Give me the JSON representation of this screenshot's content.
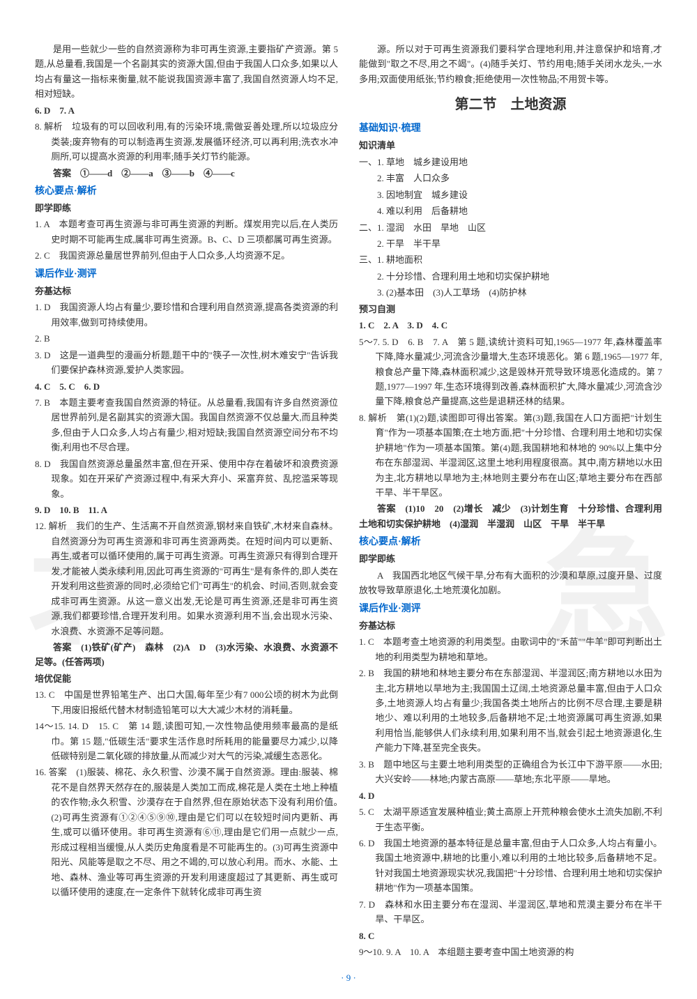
{
  "left_col": {
    "intro_para": "是用一些就少一些的自然资源称为非可再生资源,主要指矿产资源。第 5 题,从总量看,我国是一个名副其实的资源大国,但由于我国人口众多,如果以人均占有量这一指标来衡量,就不能说我国资源丰富了,我国自然资源人均不足,相对短缺。",
    "q6": "6. D　7. A",
    "q8_analysis": "8. 解析　垃圾有的可以回收利用,有的污染环境,需做妥善处理,所以垃圾应分类装;废弃物有的可以制造再生资源,发展循环经济,可以再利用;洗衣水冲厕所,可以提高水资源的利用率;随手关灯节约能源。",
    "q8_answer": "答案　①——d　②——a　③——b　④——c",
    "sec_hexin": "核心要点·解析",
    "sub_jixue": "即学即练",
    "hx_q1": "1. A　本题考查可再生资源与非可再生资源的判断。煤炭用完以后,在人类历史时期不可能再生成,属非可再生资源。B、C、D 三项都属可再生资源。",
    "hx_q2": "2. C　我国资源总量居世界前列,但由于人口众多,人均资源不足。",
    "sec_kehou": "课后作业·测评",
    "sub_daba": "夯基达标",
    "kh_q1": "1. D　我国资源人均占有量少,要珍惜和合理利用自然资源,提高各类资源的利用效率,做到可持续使用。",
    "kh_q2": "2. B",
    "kh_q3": "3. D　这是一道典型的漫画分析题,题干中的\"筷子一次性,树木难安宁\"告诉我们要保护森林资源,爱护人类家园。",
    "kh_q4": "4. C　5. C　6. D",
    "kh_q7": "7. B　本题主要考查我国自然资源的特征。从总量看,我国有许多自然资源位居世界前列,是名副其实的资源大国。我国自然资源不仅总量大,而且种类多,但由于人口众多,人均占有量少,相对短缺;我国自然资源空间分布不均衡,利用也不尽合理。",
    "kh_q8": "8. D　我国自然资源总量虽然丰富,但在开采、使用中存在着破坏和浪费资源现象。如在开采矿产资源过程中,有采大弃小、采富弃贫、乱挖滥采等现象。",
    "kh_q9": "9. D　10. B　11. A",
    "kh_q12_analysis": "12. 解析　我们的生产、生活离不开自然资源,钢材来自铁矿,木材来自森林。自然资源分为可再生资源和非可再生资源两类。在短时间内可以更新、再生,或者可以循环使用的,属于可再生资源。可再生资源只有得到合理开发,才能被人类永续利用,因此可再生资源的\"可再生\"是有条件的,即人类在开发利用这些资源的同时,必须给它们\"可再生\"的机会、时间,否则,就会变成非可再生资源。从这一意义出发,无论是可再生资源,还是非可再生资源,我们都要珍惜,合理开发利用。如果水资源利用不当,会出现水污染、水浪费、水资源不足等问题。",
    "kh_q12_answer": "答案　(1)铁矿(矿产)　森林　(2)A　D　(3)水污染、水浪费、水资源不足等。(任答两项)",
    "sub_peiyou": "培优促能",
    "py_q13": "13. C　中国是世界铅笔生产、出口大国,每年至少有7 000公顷的树木为此倒下,用废旧报纸代替木材制造铅笔可以大大减少木材的消耗量。",
    "py_q14": "14～15. 14. D　15. C　第 14 题,读图可知,一次性物品使用频率最高的是纸巾。第 15 题,\"低碳生活\"要求生活作息时所耗用的能量要尽力减少,以降低碳特别是二氧化碳的排放量,从而减少对大气的污染,减缓生态恶化。",
    "py_q16": "16. 答案　(1)服装、棉花、永久积雪、沙漠不属于自然资源。理由:服装、棉花不是自然界天然存在的,服装是人类加工而成,棉花是人类在土地上种植的农作物;永久积雪、沙漠存在于自然界,但在原始状态下没有利用价值。　(2)可再生资源有①②④⑤⑨⑩,理由是它们可以在较短时间内更新、再生,或可以循环使用。非可再生资源有⑥⑪,理由是它们用一点就少一点,形成过程相当缓慢,从人类历史角度看是不可能再生的。(3)可再生资源中阳光、风能等是取之不尽、用之不竭的,可以放心利用。而水、水能、土地、森林、渔业等可再生资源的开发利用速度超过了其更新、再生或可以循环使用的速度,在一定条件下就转化成非可再生资"
  },
  "right_col": {
    "cont_para": "源。所以对于可再生资源我们要科学合理地利用,并注意保护和培育,才能做到\"取之不尽,用之不竭\"。(4)随手关灯、节约用电;随手关闭水龙头,一水多用;双面使用纸张;节约粮食;拒绝使用一次性物品;不用贺卡等。",
    "big_title": "第二节　土地资源",
    "sec_jichu": "基础知识·梳理",
    "sub_zhishi": "知识清单",
    "zs_1": "一、1. 草地　城乡建设用地",
    "zs_1_2": "2. 丰富　人口众多",
    "zs_1_3": "3. 因地制宜　城乡建设",
    "zs_1_4": "4. 难以利用　后备耕地",
    "zs_2": "二、1. 湿润　水田　旱地　山区",
    "zs_2_2": "2. 干旱　半干旱",
    "zs_3": "三、1. 耕地面积",
    "zs_3_2": "2. 十分珍惜、合理利用土地和切实保护耕地",
    "zs_3_3": "3. (2)基本田　(3)人工草场　(4)防护林",
    "sub_yuxi": "预习自测",
    "yx_q1": "1. C　2. A　3. D　4. C",
    "yx_q5": "5～7. 5. D　6. B　7. A　第 5 题,读统计资料可知,1965—1977 年,森林覆盖率下降,降水量减少,河流含沙量增大,生态环境恶化。第 6 题,1965—1977 年,粮食总产量下降,森林面积减少,这是毁林开荒导致环境恶化造成的。第 7 题,1977—1997 年,生态环境得到改善,森林面积扩大,降水量减少,河流含沙量下降,粮食总产量提高,这些是退耕还林的结果。",
    "yx_q8_analysis": "8. 解析　第(1)(2)题,读图即可得出答案。第(3)题,我国在人口方面把\"计划生育\"作为一项基本国策;在土地方面,把\"十分珍惜、合理利用土地和切实保护耕地\"作为一项基本国策。第(4)题,我国耕地和林地的 90%以上集中分布在东部湿润、半湿润区,这里土地利用程度很高。其中,南方耕地以水田为主,北方耕地以旱地为主;林地则主要分布在山区;草地主要分布在西部干旱、半干旱区。",
    "yx_q8_answer": "答案　(1)10　20　(2)增长　减少　(3)计划生育　十分珍惜、合理利用土地和切实保护耕地　(4)湿润　半湿润　山区　干旱　半干旱",
    "sec_hexin2": "核心要点·解析",
    "sub_jixue2": "即学即练",
    "hx2_q": "A　我国西北地区气候干旱,分布有大面积的沙漠和草原,过度开垦、过度放牧导致草原退化,土地荒漠化加剧。",
    "sec_kehou2": "课后作业·测评",
    "sub_daba2": "夯基达标",
    "kh2_q1": "1. C　本题考查土地资源的利用类型。由歌词中的\"禾苗\"\"牛羊\"即可判断出土地的利用类型为耕地和草地。",
    "kh2_q2": "2. B　我国的耕地和林地主要分布在东部湿润、半湿润区;南方耕地以水田为主,北方耕地以旱地为主;我国国土辽阔,土地资源总量丰富,但由于人口众多,土地资源人均占有量少;我国各类土地所占的比例不尽合理,主要是耕地少、难以利用的土地较多,后备耕地不足;土地资源属可再生资源,如果利用恰当,能够供人们永续利用,如果利用不当,就会引起土地资源退化,生产能力下降,甚至完全丧失。",
    "kh2_q3": "3. B　题中地区与主要土地利用类型的正确组合为长江中下游平原——水田;大兴安岭——林地;内蒙古高原——草地;东北平原——旱地。",
    "kh2_q4": "4. D",
    "kh2_q5": "5. C　太湖平原适宜发展种植业;黄土高原上开荒种粮会使水土流失加剧,不利于生态平衡。",
    "kh2_q6": "6. D　我国土地资源的基本特征是总量丰富,但由于人口众多,人均占有量小。我国土地资源中,耕地的比重小,难以利用的土地比较多,后备耕地不足。针对我国土地资源现实状况,我国把\"十分珍惜、合理利用土地和切实保护耕地\"作为一项基本国策。",
    "kh2_q7": "7. D　森林和水田主要分布在湿润、半湿润区,草地和荒漠主要分布在半干旱、干旱区。",
    "kh2_q8": "8. C",
    "kh2_q9": "9～10. 9. A　10. A　本组题主要考查中国土地资源的构"
  },
  "page_number": "· 9 ·",
  "colors": {
    "text": "#333333",
    "blue": "#0066cc",
    "bg": "#ffffff",
    "watermark": "rgba(200,200,200,0.25)"
  }
}
